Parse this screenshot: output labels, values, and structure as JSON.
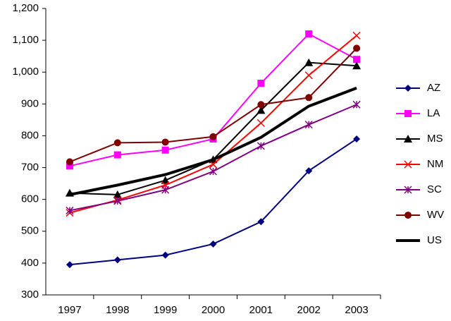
{
  "chart_data": {
    "type": "line",
    "categories": [
      "1997",
      "1998",
      "1999",
      "2000",
      "2001",
      "2002",
      "2003"
    ],
    "series": [
      {
        "name": "AZ",
        "color": "#000080",
        "marker": "diamond",
        "values": [
          395,
          410,
          425,
          460,
          530,
          690,
          790
        ]
      },
      {
        "name": "LA",
        "color": "#ff00ff",
        "marker": "square",
        "values": [
          705,
          740,
          755,
          790,
          965,
          1120,
          1040
        ]
      },
      {
        "name": "MS",
        "color": "#000000",
        "marker": "triangle",
        "values": [
          620,
          615,
          660,
          725,
          880,
          1030,
          1020
        ]
      },
      {
        "name": "NM",
        "color": "#ff0000",
        "marker": "x",
        "values": [
          558,
          598,
          645,
          710,
          840,
          990,
          1115
        ]
      },
      {
        "name": "SC",
        "color": "#800080",
        "marker": "star",
        "values": [
          565,
          595,
          630,
          688,
          768,
          835,
          898
        ]
      },
      {
        "name": "WV",
        "color": "#800000",
        "marker": "circle",
        "values": [
          718,
          778,
          780,
          797,
          898,
          920,
          1075
        ]
      },
      {
        "name": "US",
        "color": "#000000",
        "marker": "none",
        "values": [
          615,
          645,
          678,
          725,
          795,
          893,
          950
        ]
      }
    ],
    "ylim": [
      300,
      1200
    ],
    "yticks": [
      300,
      400,
      500,
      600,
      700,
      800,
      900,
      {
        "value": 1000,
        "label": "1,000"
      },
      {
        "value": 1100,
        "label": "1,100"
      },
      {
        "value": 1200,
        "label": "1,200"
      }
    ],
    "grid": false,
    "legend": "right"
  }
}
